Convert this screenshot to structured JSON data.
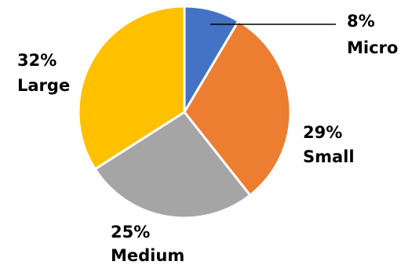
{
  "chart_data": {
    "type": "pie",
    "title": "",
    "start_angle_deg": 0,
    "direction": "clockwise",
    "slices": [
      {
        "name": "Micro",
        "label": "Micro",
        "percent_text": "8%",
        "value": 8,
        "color": "#4472C4"
      },
      {
        "name": "Small",
        "label": "Small",
        "percent_text": "29%",
        "value": 29,
        "color": "#ED7D31"
      },
      {
        "name": "Medium",
        "label": "Medium",
        "percent_text": "25%",
        "value": 25,
        "color": "#A5A5A5"
      },
      {
        "name": "Large",
        "label": "Large",
        "percent_text": "32%",
        "value": 32,
        "color": "#FFC000"
      }
    ],
    "legend": "none"
  }
}
